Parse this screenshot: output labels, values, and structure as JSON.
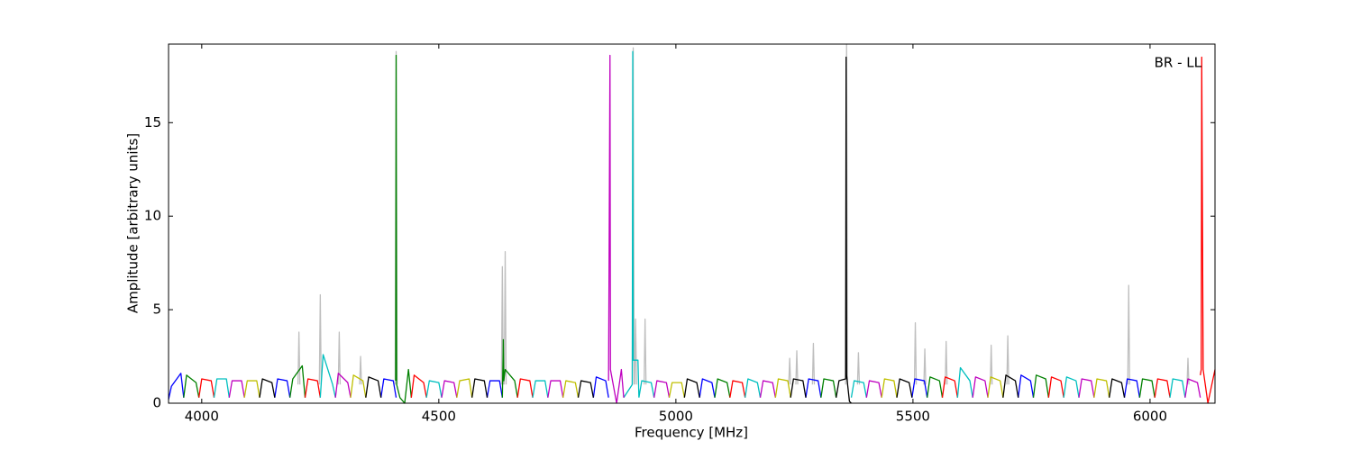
{
  "chart_data": {
    "type": "line",
    "xlabel": "Frequency [MHz]",
    "ylabel": "Amplitude [arbitrary units]",
    "annotation": "BR - LL",
    "xlim": [
      3930,
      6137
    ],
    "ylim": [
      0,
      19.2
    ],
    "xticks": [
      4000,
      4500,
      5000,
      5500,
      6000
    ],
    "yticks": [
      0,
      5,
      10,
      15
    ],
    "grid": false,
    "series": [
      {
        "color": "#bfbfbf",
        "x": [
          4203,
          4205,
          4207,
          null,
          4248,
          4250,
          4252,
          null,
          4288,
          4290,
          4292,
          null,
          4333,
          4335,
          4337,
          null,
          4408,
          4410,
          4412,
          null,
          4632,
          4634,
          4636,
          null,
          4638,
          4640,
          4642,
          null,
          4908,
          4910,
          4912,
          null,
          4913,
          4915,
          4917,
          null,
          4933,
          4935,
          4937,
          null,
          5238,
          5240,
          5242,
          null,
          5253,
          5255,
          5257,
          null,
          5288,
          5290,
          5292,
          null,
          5358,
          5360,
          5362,
          null,
          5383,
          5385,
          5387,
          null,
          5503,
          5505,
          5507,
          null,
          5523,
          5525,
          5527,
          null,
          5568,
          5570,
          5572,
          null,
          5663,
          5665,
          5667,
          null,
          5698,
          5700,
          5702,
          null,
          5953,
          5955,
          5957,
          null,
          6078,
          6080,
          6082
        ],
        "values": [
          1.0,
          3.8,
          1.0,
          null,
          1.0,
          5.8,
          1.0,
          null,
          1.0,
          3.8,
          1.0,
          null,
          1.0,
          2.5,
          1.0,
          null,
          1.0,
          18.8,
          1.0,
          null,
          1.0,
          7.3,
          1.0,
          null,
          1.0,
          8.1,
          1.0,
          null,
          1.0,
          19.0,
          1.0,
          null,
          1.0,
          4.5,
          1.0,
          null,
          1.0,
          4.5,
          1.0,
          null,
          1.0,
          2.4,
          1.0,
          null,
          1.0,
          2.8,
          1.0,
          null,
          1.0,
          3.2,
          1.0,
          null,
          1.0,
          19.2,
          1.0,
          null,
          1.0,
          2.7,
          1.0,
          null,
          1.0,
          4.3,
          1.0,
          null,
          1.0,
          2.9,
          1.0,
          null,
          1.0,
          3.3,
          1.0,
          null,
          1.0,
          3.1,
          1.0,
          null,
          1.0,
          3.6,
          1.0,
          null,
          1.0,
          6.3,
          1.0,
          null,
          1.0,
          2.4,
          1.0
        ]
      },
      {
        "color": "#0000ff",
        "x": [
          3930,
          3936,
          3956,
          3962,
          null,
          4154,
          4160,
          4180,
          4186,
          null,
          4378,
          4384,
          4404,
          4410,
          null,
          4602,
          4608,
          4628,
          4634,
          null,
          4826,
          4832,
          4852,
          4858,
          null,
          5050,
          5056,
          5076,
          5082,
          null,
          5274,
          5280,
          5300,
          5306,
          null,
          5498,
          5504,
          5524,
          5530,
          null,
          5722,
          5728,
          5748,
          5754,
          null,
          5946,
          5952,
          5972,
          5978
        ],
        "values": [
          0.2,
          0.9,
          1.6,
          0.3,
          null,
          0.3,
          1.3,
          1.2,
          0.3,
          null,
          0.3,
          1.3,
          1.2,
          0.3,
          null,
          0.3,
          1.2,
          1.2,
          0.3,
          null,
          0.3,
          1.4,
          1.2,
          0.3,
          null,
          0.3,
          1.3,
          1.1,
          0.3,
          null,
          0.3,
          1.3,
          1.2,
          0.3,
          null,
          0.3,
          1.3,
          1.2,
          0.3,
          null,
          0.3,
          1.5,
          1.2,
          0.3,
          null,
          0.3,
          1.3,
          1.2,
          0.3
        ]
      },
      {
        "color": "#008000",
        "x": [
          3962,
          3968,
          3988,
          3994,
          null,
          4186,
          4192,
          4212,
          4218,
          null,
          4409,
          4410,
          4411,
          4418,
          4428,
          4436,
          4442,
          null,
          4634,
          4636,
          4637,
          4640,
          4660,
          4666,
          null,
          5082,
          5088,
          5108,
          5114,
          null,
          5306,
          5312,
          5332,
          5338,
          null,
          5530,
          5536,
          5556,
          5562,
          null,
          5754,
          5760,
          5780,
          5786,
          null,
          5978,
          5984,
          6004,
          6010
        ],
        "values": [
          0.3,
          1.5,
          1.1,
          0.3,
          null,
          0.3,
          1.3,
          2.0,
          0.3,
          null,
          1.2,
          18.6,
          1.0,
          0.3,
          0.0,
          1.8,
          0.3,
          null,
          0.3,
          3.4,
          1.2,
          1.8,
          1.2,
          0.3,
          null,
          0.3,
          1.3,
          1.1,
          0.3,
          null,
          0.3,
          1.3,
          1.2,
          0.3,
          null,
          0.3,
          1.4,
          1.2,
          0.3,
          null,
          0.3,
          1.5,
          1.3,
          0.3,
          null,
          0.3,
          1.3,
          1.2,
          0.3
        ]
      },
      {
        "color": "#ff0000",
        "x": [
          3994,
          4000,
          4020,
          4026,
          null,
          4218,
          4224,
          4244,
          4250,
          null,
          4442,
          4448,
          4468,
          4474,
          null,
          4666,
          4672,
          4692,
          4698,
          null,
          5114,
          5120,
          5140,
          5146,
          null,
          5562,
          5568,
          5588,
          5594,
          null,
          5786,
          5792,
          5812,
          5818,
          null,
          6010,
          6016,
          6036,
          6042,
          null,
          6106,
          6108,
          6109,
          6112,
          6122,
          6137
        ],
        "values": [
          0.3,
          1.3,
          1.2,
          0.3,
          null,
          0.3,
          1.3,
          1.2,
          0.3,
          null,
          0.3,
          1.5,
          1.1,
          0.3,
          null,
          0.3,
          1.3,
          1.2,
          0.3,
          null,
          0.3,
          1.2,
          1.1,
          0.3,
          null,
          0.3,
          1.4,
          1.2,
          0.3,
          null,
          0.3,
          1.4,
          1.2,
          0.3,
          null,
          0.3,
          1.3,
          1.2,
          0.3,
          null,
          1.5,
          1.8,
          18.5,
          1.8,
          0.0,
          1.8
        ]
      },
      {
        "color": "#00bfbf",
        "x": [
          4026,
          4032,
          4052,
          4058,
          null,
          4250,
          4256,
          4276,
          4282,
          null,
          4474,
          4480,
          4500,
          4506,
          null,
          4698,
          4704,
          4724,
          4730,
          null,
          4890,
          4908,
          4909,
          4910,
          4920,
          4922,
          null,
          4922,
          4928,
          4948,
          4954,
          null,
          5146,
          5152,
          5172,
          5178,
          null,
          5370,
          5376,
          5396,
          5402,
          null,
          5594,
          5600,
          5620,
          5626,
          null,
          5818,
          5824,
          5844,
          5850,
          null,
          6042,
          6048,
          6068,
          6074
        ],
        "values": [
          0.3,
          1.3,
          1.3,
          0.3,
          null,
          0.3,
          2.6,
          1.0,
          0.3,
          null,
          0.3,
          1.2,
          1.1,
          0.3,
          null,
          0.3,
          1.2,
          1.2,
          0.3,
          null,
          0.3,
          1.0,
          18.8,
          2.3,
          2.3,
          0.3,
          null,
          0.3,
          1.2,
          1.1,
          0.3,
          null,
          0.3,
          1.3,
          1.1,
          0.3,
          null,
          0.3,
          1.2,
          1.1,
          0.3,
          null,
          0.3,
          1.9,
          1.2,
          0.3,
          null,
          0.3,
          1.4,
          1.2,
          0.3,
          null,
          0.3,
          1.3,
          1.2,
          0.3
        ]
      },
      {
        "color": "#bf00bf",
        "x": [
          4058,
          4064,
          4084,
          4090,
          null,
          4282,
          4288,
          4308,
          4314,
          null,
          4506,
          4512,
          4532,
          4538,
          null,
          4730,
          4736,
          4756,
          4762,
          null,
          4858,
          4861,
          4862,
          4875,
          4885,
          4890,
          null,
          4954,
          4960,
          4980,
          4986,
          null,
          5178,
          5184,
          5204,
          5210,
          null,
          5402,
          5408,
          5428,
          5434,
          null,
          5626,
          5632,
          5652,
          5658,
          null,
          5850,
          5856,
          5876,
          5882,
          null,
          6074,
          6080,
          6100,
          6106
        ],
        "values": [
          0.3,
          1.2,
          1.2,
          0.3,
          null,
          0.3,
          1.6,
          1.1,
          0.3,
          null,
          0.3,
          1.2,
          1.1,
          0.3,
          null,
          0.3,
          1.2,
          1.2,
          0.3,
          null,
          1.2,
          18.6,
          1.8,
          0.0,
          1.8,
          0.3,
          null,
          0.3,
          1.2,
          1.1,
          0.3,
          null,
          0.3,
          1.2,
          1.1,
          0.3,
          null,
          0.3,
          1.2,
          1.1,
          0.3,
          null,
          0.3,
          1.4,
          1.2,
          0.3,
          null,
          0.3,
          1.3,
          1.2,
          0.3,
          null,
          0.3,
          1.3,
          1.1,
          0.3
        ]
      },
      {
        "color": "#bfbf00",
        "x": [
          4090,
          4096,
          4116,
          4122,
          null,
          4314,
          4320,
          4340,
          4346,
          null,
          4538,
          4544,
          4564,
          4570,
          null,
          4762,
          4768,
          4788,
          4794,
          null,
          4986,
          4992,
          5012,
          5018,
          null,
          5210,
          5216,
          5236,
          5242,
          null,
          5434,
          5440,
          5460,
          5466,
          null,
          5658,
          5664,
          5684,
          5690,
          null,
          5882,
          5888,
          5908,
          5914
        ],
        "values": [
          0.3,
          1.2,
          1.2,
          0.3,
          null,
          0.3,
          1.5,
          1.2,
          0.3,
          null,
          0.3,
          1.2,
          1.3,
          0.3,
          null,
          0.3,
          1.2,
          1.1,
          0.3,
          null,
          0.3,
          1.1,
          1.1,
          0.3,
          null,
          0.3,
          1.3,
          1.2,
          0.3,
          null,
          0.3,
          1.3,
          1.2,
          0.3,
          null,
          0.3,
          1.4,
          1.2,
          0.3,
          null,
          0.3,
          1.3,
          1.2,
          0.3
        ]
      },
      {
        "color": "#000000",
        "x": [
          4122,
          4128,
          4148,
          4154,
          null,
          4346,
          4352,
          4372,
          4378,
          null,
          4570,
          4576,
          4596,
          4602,
          null,
          4794,
          4800,
          4820,
          4826,
          null,
          5018,
          5024,
          5044,
          5050,
          null,
          5242,
          5248,
          5268,
          5274,
          null,
          5338,
          5344,
          5358,
          5359,
          5360,
          5366,
          5370,
          null,
          5466,
          5472,
          5492,
          5498,
          null,
          5690,
          5696,
          5716,
          5722,
          null,
          5914,
          5920,
          5940,
          5946
        ],
        "values": [
          0.3,
          1.3,
          1.1,
          0.3,
          null,
          0.3,
          1.4,
          1.2,
          0.3,
          null,
          0.3,
          1.3,
          1.2,
          0.3,
          null,
          0.3,
          1.2,
          1.1,
          0.3,
          null,
          0.3,
          1.3,
          1.1,
          0.3,
          null,
          0.3,
          1.3,
          1.2,
          0.3,
          null,
          0.3,
          1.2,
          1.3,
          18.5,
          1.5,
          0.1,
          0.0,
          null,
          0.3,
          1.3,
          1.1,
          0.3,
          null,
          0.3,
          1.5,
          1.2,
          0.3,
          null,
          0.3,
          1.3,
          1.1,
          0.3
        ]
      }
    ]
  }
}
